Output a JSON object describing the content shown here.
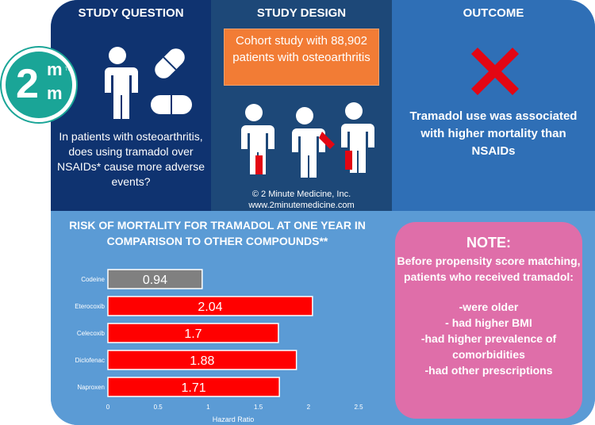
{
  "header": {
    "question_title": "STUDY QUESTION",
    "design_title": "STUDY DESIGN",
    "outcome_title": "OUTCOME"
  },
  "logo": {
    "main": "2",
    "top": "m",
    "bottom": "m",
    "tm": "TM"
  },
  "question": {
    "text": "In patients with osteoarthritis, does using tramadol over NSAIDs* cause more adverse events?"
  },
  "design": {
    "box_text": "Cohort study with 88,902 patients with osteoarthritis",
    "copyright_line1": "© 2 Minute Medicine, Inc.",
    "copyright_line2": "www.2minutemedicine.com"
  },
  "outcome": {
    "text": "Tramadol use was associated with higher mortality than NSAIDs"
  },
  "note": {
    "title": "NOTE:",
    "intro": "Before propensity score matching, patients who received tramadol:",
    "items": [
      "-were older",
      "- had higher BMI",
      "-had higher prevalence of comorbidities",
      "-had other prescriptions"
    ]
  },
  "colors": {
    "bar_primary": "#ff0000",
    "bar_reference": "#808080",
    "accent_orange": "#f27c35",
    "note_pink": "#df6ea9",
    "logo_teal": "#1aa597",
    "x_mark": "#e30613"
  },
  "chart_data": {
    "type": "bar",
    "orientation": "horizontal",
    "title": "RISK OF MORTALITY FOR TRAMADOL AT ONE YEAR IN COMPARISON TO OTHER COMPOUNDS**",
    "categories": [
      "Codeine",
      "Eterocoxib",
      "Celecoxib",
      "Diclofenac",
      "Naproxen"
    ],
    "values": [
      0.94,
      2.04,
      1.7,
      1.88,
      1.71
    ],
    "value_labels": [
      "0.94",
      "2.04",
      "1.7",
      "1.88",
      "1.71"
    ],
    "bar_colors": [
      "#808080",
      "#ff0000",
      "#ff0000",
      "#ff0000",
      "#ff0000"
    ],
    "xlabel": "Hazard Ratio",
    "ylabel": "",
    "xlim": [
      0,
      2.5
    ],
    "xticks": [
      "0",
      "0.5",
      "1",
      "1.5",
      "2",
      "2.5"
    ],
    "grid": false,
    "legend": "none"
  }
}
